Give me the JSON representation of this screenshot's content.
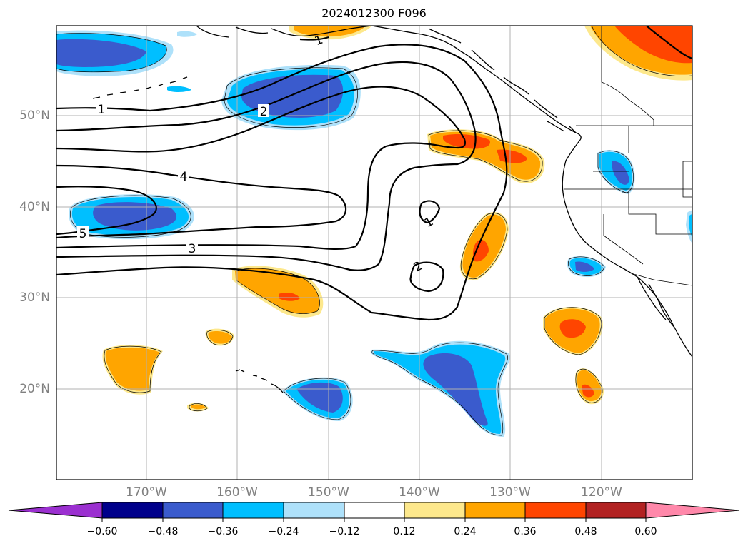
{
  "title": "2024012300 F096",
  "map": {
    "lat_labels": [
      "50°N",
      "40°N",
      "30°N",
      "20°N"
    ],
    "lon_labels": [
      "170°W",
      "160°W",
      "150°W",
      "140°W",
      "130°W",
      "120°W"
    ],
    "contour_labels": [
      "1",
      "2",
      "4",
      "5",
      "3",
      "1",
      "2",
      "1"
    ],
    "colors": {
      "dark_blue": "#3a5bcd",
      "cyan": "#00bfff",
      "light_blue": "#aee1fa",
      "light_yellow": "#fde88c",
      "orange": "#ffa500",
      "red_orange": "#ff4500",
      "grid": "#b0b0b0"
    }
  },
  "colorbar": {
    "ticks": [
      "−0.60",
      "−0.48",
      "−0.36",
      "−0.24",
      "−0.12",
      "0.12",
      "0.24",
      "0.36",
      "0.48",
      "0.60"
    ],
    "colors": [
      "#9b30d0",
      "#00008b",
      "#3a5bcd",
      "#00bfff",
      "#aee1fa",
      "#ffffff",
      "#fde88c",
      "#ffa500",
      "#ff4500",
      "#b22222",
      "#ff88aa"
    ]
  }
}
